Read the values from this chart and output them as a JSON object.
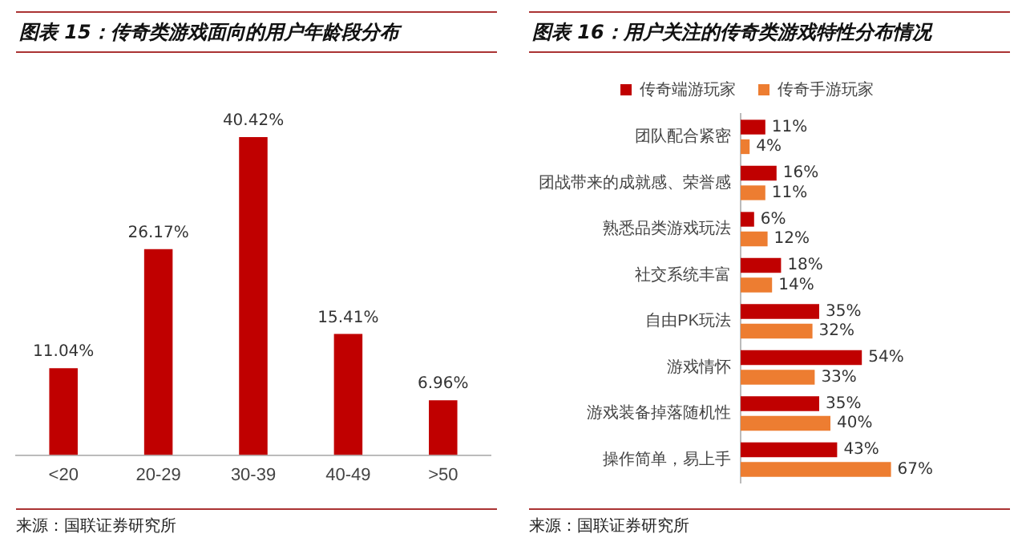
{
  "chart_data": [
    {
      "type": "bar",
      "title": "图表 15：传奇类游戏面向的用户年龄段分布",
      "categories": [
        "<20",
        "20-29",
        "30-39",
        "40-49",
        ">50"
      ],
      "series": [
        {
          "color": "#c00000",
          "values": [
            11.04,
            26.17,
            40.42,
            15.41,
            6.96
          ],
          "value_labels": [
            "11.04%",
            "26.17%",
            "40.42%",
            "15.41%",
            "6.96%"
          ]
        }
      ],
      "tick_labels": "x",
      "grid": false,
      "legend": false,
      "annotations": [
        "来源：国联证券研究所"
      ]
    },
    {
      "type": "bar",
      "orientation": "horizontal",
      "title": "图表 16：用户关注的传奇类游戏特性分布情况",
      "categories": [
        "团队配合紧密",
        "团战带来的成就感、荣誉感",
        "熟悉品类游戏玩法",
        "社交系统丰富",
        "自由PK玩法",
        "游戏情怀",
        "游戏装备掉落随机性",
        "操作简单，易上手"
      ],
      "series": [
        {
          "name": "传奇端游玩家",
          "color": "#c00000",
          "values": [
            11,
            16,
            6,
            18,
            35,
            54,
            35,
            43
          ],
          "value_labels": [
            "11%",
            "16%",
            "6%",
            "18%",
            "35%",
            "54%",
            "35%",
            "43%"
          ]
        },
        {
          "name": "传奇手游玩家",
          "color": "#ed7d31",
          "values": [
            4,
            11,
            12,
            14,
            32,
            33,
            40,
            67
          ],
          "value_labels": [
            "4%",
            "11%",
            "12%",
            "14%",
            "32%",
            "33%",
            "40%",
            "67%"
          ]
        }
      ],
      "tick_labels": "y",
      "grid": false,
      "legend": "top",
      "annotations": [
        "来源：国联证券研究所"
      ]
    }
  ]
}
